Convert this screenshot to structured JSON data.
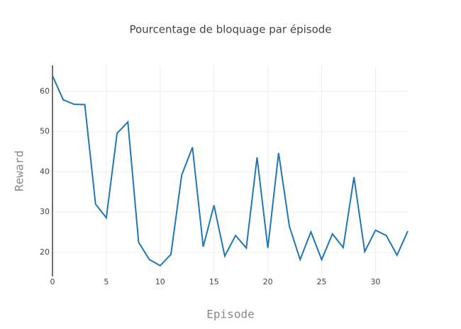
{
  "chart_data": {
    "type": "line",
    "title": "Pourcentage de bloquage par épisode",
    "x_label": "Episode",
    "y_label": "Reward",
    "x": [
      0,
      1,
      2,
      3,
      4,
      5,
      6,
      7,
      8,
      9,
      10,
      11,
      12,
      13,
      14,
      15,
      16,
      17,
      18,
      19,
      20,
      21,
      22,
      23,
      24,
      25,
      26,
      27,
      28,
      29,
      30,
      31,
      32,
      33
    ],
    "series": [
      {
        "name": "Reward",
        "color": "#1f77b4",
        "values": [
          63.9,
          57.9,
          56.8,
          56.7,
          32.0,
          28.6,
          49.6,
          52.4,
          22.5,
          18.2,
          16.7,
          19.5,
          39.2,
          46.1,
          21.4,
          31.7,
          19.1,
          24.2,
          21.1,
          43.6,
          21.1,
          44.7,
          26.5,
          18.2,
          25.1,
          18.2,
          24.6,
          21.2,
          38.7,
          20.2,
          25.5,
          24.2,
          19.3,
          25.3
        ]
      }
    ],
    "xlim": [
      0,
      33
    ],
    "xticks": [
      0,
      5,
      10,
      15,
      20,
      25,
      30
    ],
    "ylim": [
      14,
      66.5
    ],
    "yticks": [
      20,
      30,
      40,
      50,
      60
    ],
    "grid": true
  }
}
